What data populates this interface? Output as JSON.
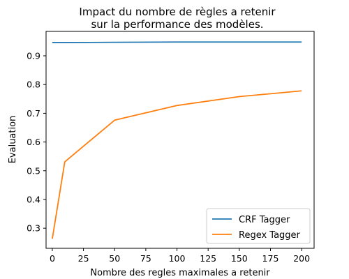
{
  "chart_data": {
    "type": "line",
    "title_lines": [
      "Impact du nombre de règles a retenir",
      "sur la performance des modèles."
    ],
    "xlabel": "Nombre des regles maximales a retenir",
    "ylabel": "Evaluation",
    "xlim": [
      -5,
      210
    ],
    "ylim": [
      0.23,
      0.985
    ],
    "xticks": [
      0,
      25,
      50,
      75,
      100,
      125,
      150,
      175,
      200
    ],
    "yticks": [
      0.3,
      0.4,
      0.5,
      0.6,
      0.7,
      0.8,
      0.9
    ],
    "ytick_labels": [
      "0.3",
      "0.4",
      "0.5",
      "0.6",
      "0.7",
      "0.8",
      "0.9"
    ],
    "grid": false,
    "legend_position": "lower-right",
    "series": [
      {
        "name": "CRF Tagger",
        "color": "#1f77b4",
        "x": [
          0,
          10,
          50,
          100,
          150,
          200
        ],
        "y": [
          0.946,
          0.946,
          0.947,
          0.948,
          0.948,
          0.948
        ]
      },
      {
        "name": "Regex Tagger",
        "color": "#ff7f0e",
        "x": [
          0,
          10,
          50,
          100,
          150,
          200
        ],
        "y": [
          0.263,
          0.531,
          0.676,
          0.727,
          0.758,
          0.778
        ]
      }
    ]
  }
}
